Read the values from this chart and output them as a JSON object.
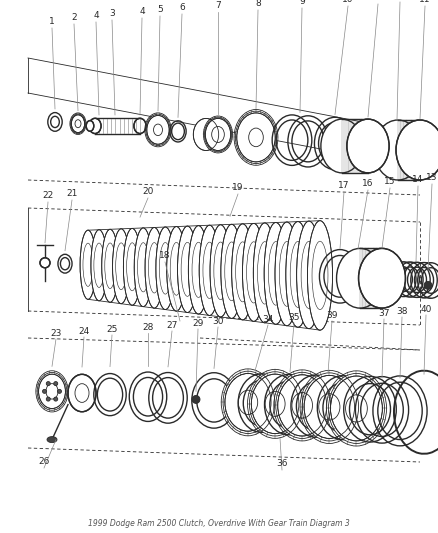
{
  "bg_color": "#ffffff",
  "line_color": "#2a2a2a",
  "label_color": "#2a2a2a",
  "leader_color": "#888888",
  "title": "1999 Dodge Ram 2500 Clutch, Overdrive With Gear Train Diagram 3",
  "fig_w": 4.38,
  "fig_h": 5.33,
  "dpi": 100
}
